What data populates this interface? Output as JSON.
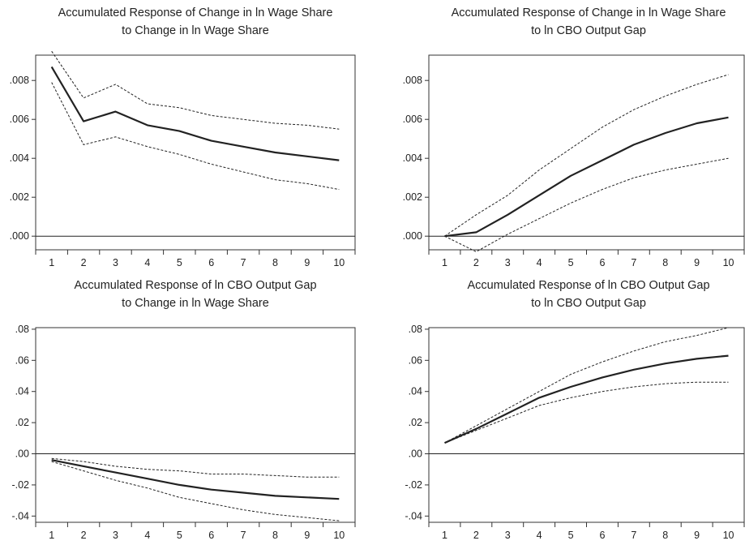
{
  "chart_data": [
    {
      "type": "line",
      "title": [
        "Accumulated Response of Change in ln Wage Share",
        "to Change in ln Wage Share"
      ],
      "x": [
        1,
        2,
        3,
        4,
        5,
        6,
        7,
        8,
        9,
        10
      ],
      "xlim": [
        0.5,
        10.5
      ],
      "ylim": [
        -0.0007,
        0.0093
      ],
      "yticks": [
        0.0,
        0.002,
        0.004,
        0.006,
        0.008
      ],
      "ytick_labels": [
        ".000",
        ".002",
        ".004",
        ".006",
        ".008"
      ],
      "zero_line": true,
      "series": [
        {
          "role": "response",
          "values": [
            0.0087,
            0.0059,
            0.0064,
            0.0057,
            0.0054,
            0.0049,
            0.0046,
            0.0043,
            0.0041,
            0.0039
          ]
        },
        {
          "role": "upper",
          "values": [
            0.0095,
            0.0071,
            0.0078,
            0.0068,
            0.0066,
            0.0062,
            0.006,
            0.0058,
            0.0057,
            0.0055
          ]
        },
        {
          "role": "lower",
          "values": [
            0.0079,
            0.0047,
            0.0051,
            0.0046,
            0.0042,
            0.0037,
            0.0033,
            0.0029,
            0.0027,
            0.0024
          ]
        }
      ]
    },
    {
      "type": "line",
      "title": [
        "Accumulated Response of Change in ln Wage Share",
        "to ln CBO Output Gap"
      ],
      "x": [
        1,
        2,
        3,
        4,
        5,
        6,
        7,
        8,
        9,
        10
      ],
      "xlim": [
        0.5,
        10.5
      ],
      "ylim": [
        -0.0007,
        0.0093
      ],
      "yticks": [
        0.0,
        0.002,
        0.004,
        0.006,
        0.008
      ],
      "ytick_labels": [
        ".000",
        ".002",
        ".004",
        ".006",
        ".008"
      ],
      "zero_line": true,
      "series": [
        {
          "role": "response",
          "values": [
            0.0,
            0.0002,
            0.0011,
            0.0021,
            0.0031,
            0.0039,
            0.0047,
            0.0053,
            0.0058,
            0.0061
          ]
        },
        {
          "role": "upper",
          "values": [
            0.0,
            0.0011,
            0.0021,
            0.0034,
            0.0045,
            0.0056,
            0.0065,
            0.0072,
            0.0078,
            0.0083
          ]
        },
        {
          "role": "lower",
          "values": [
            0.0,
            -0.0008,
            0.0001,
            0.0009,
            0.0017,
            0.0024,
            0.003,
            0.0034,
            0.0037,
            0.004
          ]
        }
      ]
    },
    {
      "type": "line",
      "title": [
        "Accumulated Response of ln CBO Output Gap",
        "to Change in ln Wage Share"
      ],
      "x": [
        1,
        2,
        3,
        4,
        5,
        6,
        7,
        8,
        9,
        10
      ],
      "xlim": [
        0.5,
        10.5
      ],
      "ylim": [
        -0.044,
        0.081
      ],
      "yticks": [
        -0.04,
        -0.02,
        0.0,
        0.02,
        0.04,
        0.06,
        0.08
      ],
      "ytick_labels": [
        "-.04",
        "-.02",
        ".00",
        ".02",
        ".04",
        ".06",
        ".08"
      ],
      "zero_line": true,
      "series": [
        {
          "role": "response",
          "values": [
            -0.004,
            -0.008,
            -0.012,
            -0.016,
            -0.02,
            -0.023,
            -0.025,
            -0.027,
            -0.028,
            -0.029
          ]
        },
        {
          "role": "upper",
          "values": [
            -0.003,
            -0.005,
            -0.008,
            -0.01,
            -0.011,
            -0.013,
            -0.013,
            -0.014,
            -0.015,
            -0.015
          ]
        },
        {
          "role": "lower",
          "values": [
            -0.005,
            -0.011,
            -0.017,
            -0.022,
            -0.028,
            -0.032,
            -0.036,
            -0.039,
            -0.041,
            -0.043
          ]
        }
      ]
    },
    {
      "type": "line",
      "title": [
        "Accumulated Response of ln CBO Output Gap",
        "to ln CBO Output Gap"
      ],
      "x": [
        1,
        2,
        3,
        4,
        5,
        6,
        7,
        8,
        9,
        10
      ],
      "xlim": [
        0.5,
        10.5
      ],
      "ylim": [
        -0.044,
        0.081
      ],
      "yticks": [
        -0.04,
        -0.02,
        0.0,
        0.02,
        0.04,
        0.06,
        0.08
      ],
      "ytick_labels": [
        "-.04",
        "-.02",
        ".00",
        ".02",
        ".04",
        ".06",
        ".08"
      ],
      "zero_line": true,
      "series": [
        {
          "role": "response",
          "values": [
            0.007,
            0.016,
            0.026,
            0.036,
            0.043,
            0.049,
            0.054,
            0.058,
            0.061,
            0.063
          ]
        },
        {
          "role": "upper",
          "values": [
            0.007,
            0.018,
            0.029,
            0.04,
            0.051,
            0.059,
            0.066,
            0.072,
            0.076,
            0.081
          ]
        },
        {
          "role": "lower",
          "values": [
            0.007,
            0.015,
            0.023,
            0.031,
            0.036,
            0.04,
            0.043,
            0.045,
            0.046,
            0.046
          ]
        }
      ]
    }
  ]
}
